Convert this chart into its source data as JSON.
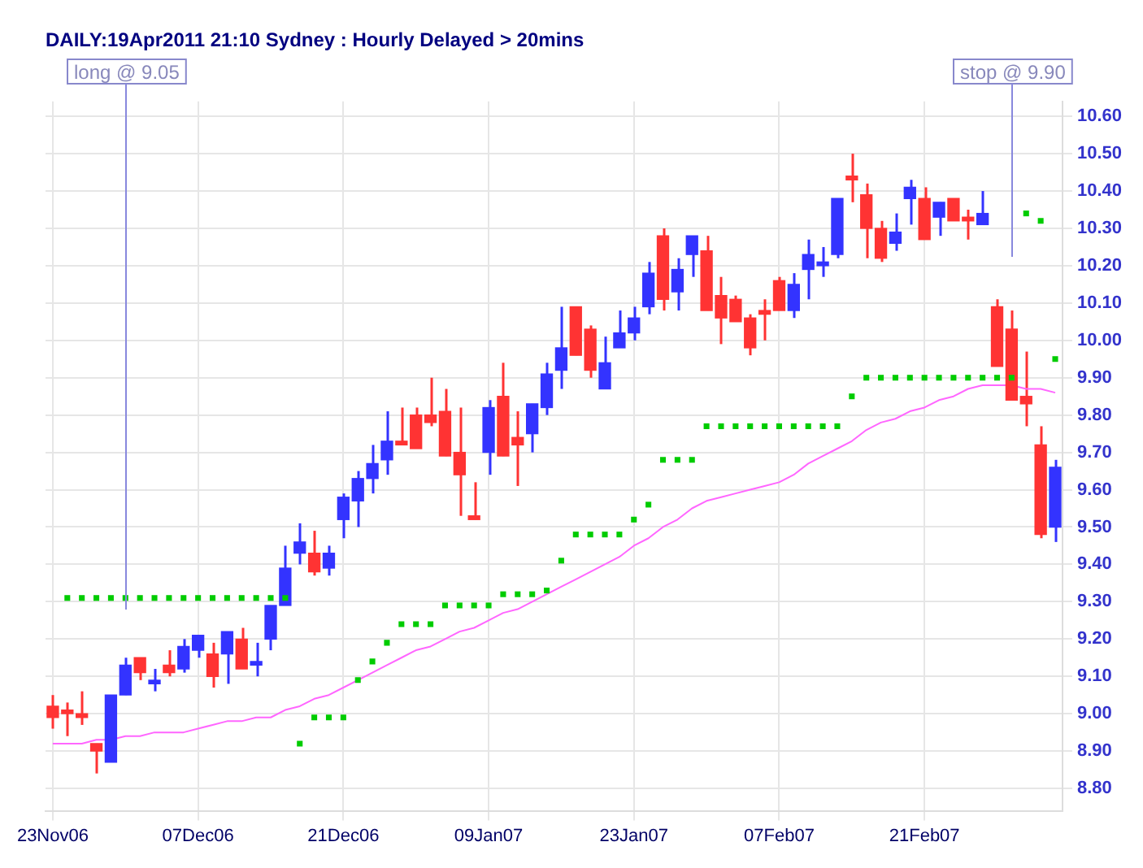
{
  "chart_data": {
    "type": "candlestick",
    "title": "DAILY:19Apr2011 21:10 Sydney : Hourly Delayed > 20mins",
    "categories": [
      "23Nov06",
      null,
      null,
      null,
      null,
      null,
      null,
      null,
      null,
      null,
      "07Dec06",
      null,
      null,
      null,
      null,
      null,
      null,
      null,
      null,
      null,
      "21Dec06",
      null,
      null,
      null,
      null,
      null,
      null,
      null,
      null,
      null,
      "09Jan07",
      null,
      null,
      null,
      null,
      null,
      null,
      null,
      null,
      null,
      "23Jan07",
      null,
      null,
      null,
      null,
      null,
      null,
      null,
      null,
      null,
      "07Feb07",
      null,
      null,
      null,
      null,
      null,
      null,
      null,
      null,
      null,
      "21Feb07",
      null,
      null,
      null,
      null,
      null,
      null,
      null,
      null,
      null
    ],
    "ohlc": [
      [
        9.02,
        9.05,
        8.96,
        8.99
      ],
      [
        9.01,
        9.03,
        8.94,
        9.0
      ],
      [
        9.0,
        9.06,
        8.97,
        8.99
      ],
      [
        8.92,
        8.92,
        8.84,
        8.9
      ],
      [
        8.87,
        9.05,
        8.87,
        9.05
      ],
      [
        9.05,
        9.15,
        9.05,
        9.13
      ],
      [
        9.15,
        9.15,
        9.09,
        9.11
      ],
      [
        9.08,
        9.12,
        9.06,
        9.09
      ],
      [
        9.13,
        9.17,
        9.1,
        9.11
      ],
      [
        9.12,
        9.2,
        9.11,
        9.18
      ],
      [
        9.17,
        9.21,
        9.15,
        9.21
      ],
      [
        9.16,
        9.19,
        9.07,
        9.1
      ],
      [
        9.16,
        9.22,
        9.08,
        9.22
      ],
      [
        9.2,
        9.23,
        9.12,
        9.12
      ],
      [
        9.13,
        9.19,
        9.1,
        9.14
      ],
      [
        9.2,
        9.29,
        9.17,
        9.29
      ],
      [
        9.29,
        9.45,
        9.29,
        9.39
      ],
      [
        9.43,
        9.51,
        9.4,
        9.46
      ],
      [
        9.43,
        9.49,
        9.37,
        9.38
      ],
      [
        9.39,
        9.45,
        9.37,
        9.43
      ],
      [
        9.52,
        9.59,
        9.47,
        9.58
      ],
      [
        9.57,
        9.65,
        9.5,
        9.63
      ],
      [
        9.63,
        9.72,
        9.59,
        9.67
      ],
      [
        9.68,
        9.81,
        9.64,
        9.73
      ],
      [
        9.73,
        9.82,
        9.72,
        9.72
      ],
      [
        9.8,
        9.82,
        9.71,
        9.71
      ],
      [
        9.8,
        9.9,
        9.77,
        9.78
      ],
      [
        9.81,
        9.87,
        9.69,
        9.69
      ],
      [
        9.7,
        9.82,
        9.53,
        9.64
      ],
      [
        9.53,
        9.62,
        9.52,
        9.52
      ],
      [
        9.7,
        9.84,
        9.64,
        9.82
      ],
      [
        9.85,
        9.94,
        9.69,
        9.69
      ],
      [
        9.74,
        9.81,
        9.61,
        9.72
      ],
      [
        9.75,
        9.83,
        9.7,
        9.83
      ],
      [
        9.82,
        9.94,
        9.8,
        9.91
      ],
      [
        9.92,
        10.09,
        9.87,
        9.98
      ],
      [
        10.09,
        10.09,
        9.96,
        9.96
      ],
      [
        10.03,
        10.04,
        9.9,
        9.92
      ],
      [
        9.87,
        10.01,
        9.87,
        9.94
      ],
      [
        9.98,
        10.08,
        9.98,
        10.02
      ],
      [
        10.02,
        10.09,
        10.0,
        10.06
      ],
      [
        10.09,
        10.21,
        10.07,
        10.18
      ],
      [
        10.28,
        10.3,
        10.08,
        10.11
      ],
      [
        10.13,
        10.22,
        10.08,
        10.19
      ],
      [
        10.23,
        10.28,
        10.17,
        10.28
      ],
      [
        10.24,
        10.28,
        10.08,
        10.08
      ],
      [
        10.12,
        10.17,
        9.99,
        10.06
      ],
      [
        10.11,
        10.12,
        10.05,
        10.05
      ],
      [
        10.06,
        10.07,
        9.96,
        9.98
      ],
      [
        10.08,
        10.11,
        10.0,
        10.07
      ],
      [
        10.16,
        10.17,
        10.08,
        10.08
      ],
      [
        10.08,
        10.18,
        10.06,
        10.15
      ],
      [
        10.19,
        10.27,
        10.11,
        10.23
      ],
      [
        10.2,
        10.25,
        10.17,
        10.21
      ],
      [
        10.23,
        10.38,
        10.22,
        10.38
      ],
      [
        10.44,
        10.5,
        10.37,
        10.43
      ],
      [
        10.39,
        10.42,
        10.22,
        10.3
      ],
      [
        10.3,
        10.32,
        10.21,
        10.22
      ],
      [
        10.26,
        10.34,
        10.24,
        10.29
      ],
      [
        10.38,
        10.43,
        10.31,
        10.41
      ],
      [
        10.38,
        10.41,
        10.27,
        10.27
      ],
      [
        10.33,
        10.37,
        10.28,
        10.37
      ],
      [
        10.38,
        10.38,
        10.32,
        10.32
      ],
      [
        10.33,
        10.35,
        10.27,
        10.32
      ],
      [
        10.31,
        10.4,
        10.31,
        10.34
      ],
      [
        10.09,
        10.11,
        9.93,
        9.93
      ],
      [
        10.03,
        10.08,
        9.84,
        9.84
      ],
      [
        9.85,
        9.97,
        9.77,
        9.83
      ],
      [
        9.72,
        9.77,
        9.47,
        9.48
      ],
      [
        9.5,
        9.68,
        9.46,
        9.66
      ]
    ],
    "colors": [
      "#ff3333",
      "#ff3333",
      "#ff3333",
      "#ff3333",
      "#3333ff",
      "#3333ff",
      "#ff3333",
      "#3333ff",
      "#ff3333",
      "#3333ff",
      "#3333ff",
      "#ff3333",
      "#3333ff",
      "#ff3333",
      "#3333ff",
      "#3333ff",
      "#3333ff",
      "#3333ff",
      "#ff3333",
      "#3333ff",
      "#3333ff",
      "#3333ff",
      "#3333ff",
      "#3333ff",
      "#ff3333",
      "#ff3333",
      "#ff3333",
      "#ff3333",
      "#ff3333",
      "#ff3333",
      "#3333ff",
      "#ff3333",
      "#ff3333",
      "#3333ff",
      "#3333ff",
      "#3333ff",
      "#ff3333",
      "#ff3333",
      "#3333ff",
      "#3333ff",
      "#3333ff",
      "#3333ff",
      "#ff3333",
      "#3333ff",
      "#3333ff",
      "#ff3333",
      "#ff3333",
      "#ff3333",
      "#ff3333",
      "#ff3333",
      "#ff3333",
      "#3333ff",
      "#3333ff",
      "#3333ff",
      "#3333ff",
      "#ff3333",
      "#ff3333",
      "#ff3333",
      "#3333ff",
      "#3333ff",
      "#ff3333",
      "#3333ff",
      "#ff3333",
      "#ff3333",
      "#3333ff",
      "#ff3333",
      "#ff3333",
      "#ff3333",
      "#ff3333",
      "#3333ff"
    ],
    "series": [
      {
        "type": "line",
        "color": "#ff66ff",
        "marker": "none",
        "values": [
          8.92,
          8.92,
          8.92,
          8.93,
          8.93,
          8.94,
          8.94,
          8.95,
          8.95,
          8.95,
          8.96,
          8.97,
          8.98,
          8.98,
          8.99,
          8.99,
          9.01,
          9.02,
          9.04,
          9.05,
          9.07,
          9.09,
          9.11,
          9.13,
          9.15,
          9.17,
          9.18,
          9.2,
          9.22,
          9.23,
          9.25,
          9.27,
          9.28,
          9.3,
          9.32,
          9.34,
          9.36,
          9.38,
          9.4,
          9.42,
          9.45,
          9.47,
          9.5,
          9.52,
          9.55,
          9.57,
          9.58,
          9.59,
          9.6,
          9.61,
          9.62,
          9.64,
          9.67,
          9.69,
          9.71,
          9.73,
          9.76,
          9.78,
          9.79,
          9.81,
          9.82,
          9.84,
          9.85,
          9.87,
          9.88,
          9.88,
          9.88,
          9.87,
          9.87,
          9.86
        ]
      },
      {
        "type": "scatter",
        "color": "#00cc00",
        "marker": "square",
        "values": [
          null,
          9.31,
          9.31,
          9.31,
          9.31,
          9.31,
          9.31,
          9.31,
          9.31,
          9.31,
          9.31,
          9.31,
          9.31,
          9.31,
          9.31,
          9.31,
          9.31,
          8.92,
          8.99,
          8.99,
          8.99,
          9.09,
          9.14,
          9.19,
          9.24,
          9.24,
          9.24,
          9.29,
          9.29,
          9.29,
          9.29,
          9.32,
          9.32,
          9.32,
          9.33,
          9.41,
          9.48,
          9.48,
          9.48,
          9.48,
          9.52,
          9.56,
          9.68,
          9.68,
          9.68,
          9.77,
          9.77,
          9.77,
          9.77,
          9.77,
          9.77,
          9.77,
          9.77,
          9.77,
          9.77,
          9.85,
          9.9,
          9.9,
          9.9,
          9.9,
          9.9,
          9.9,
          9.9,
          9.9,
          9.9,
          9.9,
          9.9,
          10.34,
          10.32,
          9.95
        ]
      }
    ],
    "ylim": [
      8.74,
      10.64
    ],
    "yticks": [
      {
        "value": 8.8,
        "label": "8.80"
      },
      {
        "value": 8.9,
        "label": "8.90"
      },
      {
        "value": 9.0,
        "label": "9.00"
      },
      {
        "value": 9.1,
        "label": "9.10"
      },
      {
        "value": 9.2,
        "label": "9.20"
      },
      {
        "value": 9.3,
        "label": "9.30"
      },
      {
        "value": 9.4,
        "label": "9.40"
      },
      {
        "value": 9.5,
        "label": "9.50"
      },
      {
        "value": 9.6,
        "label": "9.60"
      },
      {
        "value": 9.7,
        "label": "9.70"
      },
      {
        "value": 9.8,
        "label": "9.80"
      },
      {
        "value": 9.9,
        "label": "9.90"
      },
      {
        "value": 10.0,
        "label": "10.00"
      },
      {
        "value": 10.1,
        "label": "10.10"
      },
      {
        "value": 10.2,
        "label": "10.20"
      },
      {
        "value": 10.3,
        "label": "10.30"
      },
      {
        "value": 10.4,
        "label": "10.40"
      },
      {
        "value": 10.5,
        "label": "10.50"
      },
      {
        "value": 10.6,
        "label": "10.60"
      }
    ],
    "annotations": [
      "long @ 9.05",
      "stop @ 9.90"
    ],
    "grid": true,
    "legend": false
  }
}
